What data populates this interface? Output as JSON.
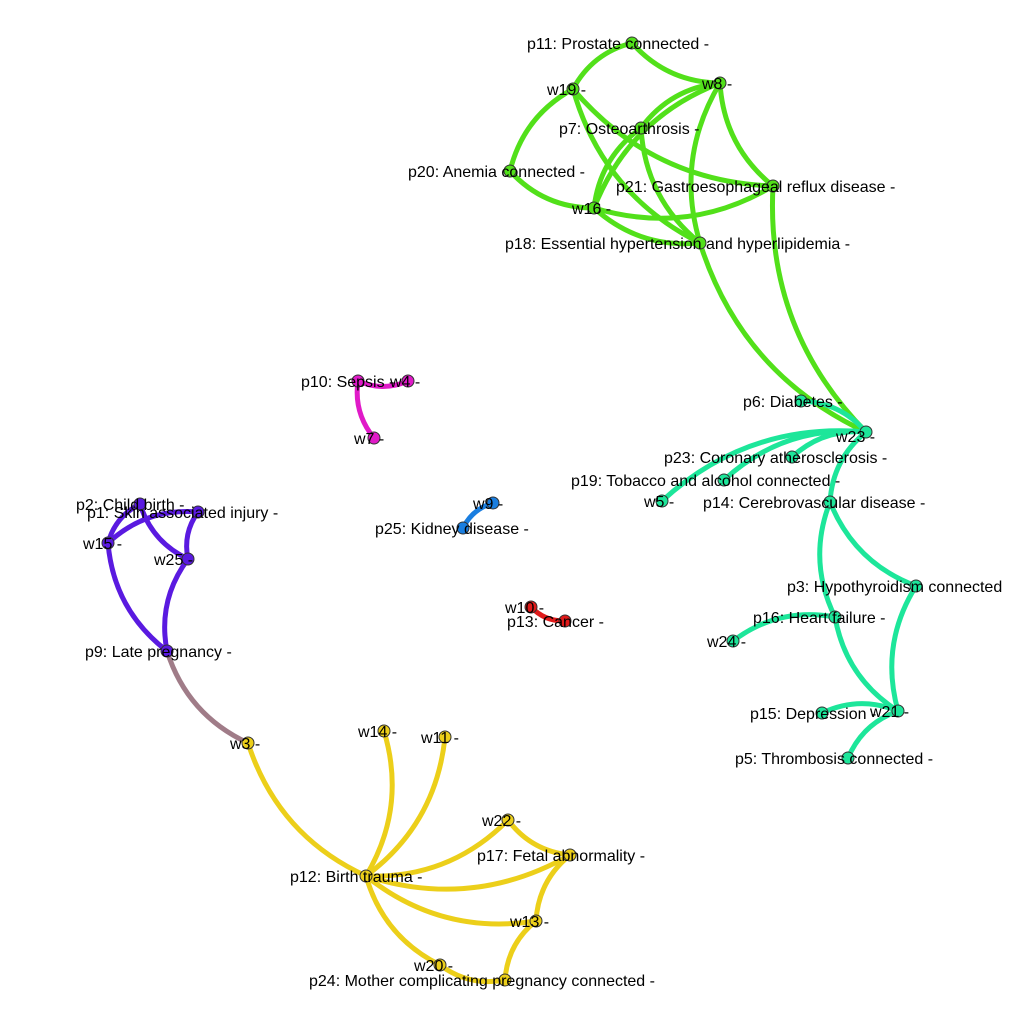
{
  "colors": {
    "green": "#52e01a",
    "teal": "#1de69a",
    "purple": "#5a1ae0",
    "magenta": "#e01ac8",
    "blue": "#1a7ee0",
    "red": "#e01a1a",
    "yellow": "#eccf1a",
    "mauve": "#a07c88"
  },
  "nodes": [
    {
      "id": "p11",
      "label": "p11: Prostate connected -",
      "color": "green"
    },
    {
      "id": "w19",
      "label": "w19 -",
      "color": "green"
    },
    {
      "id": "w8",
      "label": "w8 -",
      "color": "green"
    },
    {
      "id": "p7",
      "label": "p7: Osteoarthrosis -",
      "color": "green"
    },
    {
      "id": "p20",
      "label": "p20: Anemia connected -",
      "color": "green"
    },
    {
      "id": "p21",
      "label": "p21: Gastroesophageal reflux disease -",
      "color": "green"
    },
    {
      "id": "w16",
      "label": "w16 -",
      "color": "green"
    },
    {
      "id": "p18",
      "label": "p18: Essential hypertension and hyperlipidemia -",
      "color": "green"
    },
    {
      "id": "p10",
      "label": "p10: Sepsis -",
      "color": "magenta"
    },
    {
      "id": "w4",
      "label": "w4 -",
      "color": "magenta"
    },
    {
      "id": "w7",
      "label": "w7 -",
      "color": "magenta"
    },
    {
      "id": "p6",
      "label": "p6: Diabetes -",
      "color": "teal"
    },
    {
      "id": "w23",
      "label": "w23 -",
      "color": "teal"
    },
    {
      "id": "p23",
      "label": "p23: Coronary atherosclerosis -",
      "color": "teal"
    },
    {
      "id": "p19",
      "label": "p19: Tobacco and alcohol connected -",
      "color": "teal"
    },
    {
      "id": "w5",
      "label": "w5 -",
      "color": "teal"
    },
    {
      "id": "p14",
      "label": "p14: Cerebrovascular disease -",
      "color": "teal"
    },
    {
      "id": "w9",
      "label": "w9 -",
      "color": "blue"
    },
    {
      "id": "p25",
      "label": "p25: Kidney disease -",
      "color": "blue"
    },
    {
      "id": "p2",
      "label": "p2: Child birth -",
      "color": "purple"
    },
    {
      "id": "p1",
      "label": "p1: Skin associated injury -",
      "color": "purple"
    },
    {
      "id": "w15",
      "label": "w15 -",
      "color": "purple"
    },
    {
      "id": "w25",
      "label": "w25 -",
      "color": "purple"
    },
    {
      "id": "p3",
      "label": "p3: Hypothyroidism connected",
      "color": "teal"
    },
    {
      "id": "w10",
      "label": "w10 -",
      "color": "red"
    },
    {
      "id": "p13",
      "label": "p13: Cancer -",
      "color": "red"
    },
    {
      "id": "p16",
      "label": "p16: Heart failure -",
      "color": "teal"
    },
    {
      "id": "w24",
      "label": "w24 -",
      "color": "teal"
    },
    {
      "id": "p9",
      "label": "p9: Late pregnancy -",
      "color": "purple"
    },
    {
      "id": "p15",
      "label": "p15: Depression -",
      "color": "teal"
    },
    {
      "id": "w21",
      "label": "w21 -",
      "color": "teal"
    },
    {
      "id": "w3",
      "label": "w3 -",
      "color": "yellow"
    },
    {
      "id": "w14",
      "label": "w14 -",
      "color": "yellow"
    },
    {
      "id": "w11",
      "label": "w11 -",
      "color": "yellow"
    },
    {
      "id": "p5",
      "label": "p5: Thrombosis connected -",
      "color": "teal"
    },
    {
      "id": "w22",
      "label": "w22 -",
      "color": "yellow"
    },
    {
      "id": "p17",
      "label": "p17: Fetal abnormality -",
      "color": "yellow"
    },
    {
      "id": "p12",
      "label": "p12: Birth trauma -",
      "color": "yellow"
    },
    {
      "id": "w13",
      "label": "w13 -",
      "color": "yellow"
    },
    {
      "id": "w20",
      "label": "w20 -",
      "color": "yellow"
    },
    {
      "id": "p24",
      "label": "p24: Mother complicating pregnancy connected -",
      "color": "yellow"
    }
  ],
  "edges": [
    {
      "from": "p11",
      "to": "w19",
      "color": "green"
    },
    {
      "from": "p11",
      "to": "w8",
      "color": "green"
    },
    {
      "from": "w19",
      "to": "p20",
      "color": "green"
    },
    {
      "from": "w19",
      "to": "p21",
      "color": "green"
    },
    {
      "from": "w19",
      "to": "p18",
      "color": "green"
    },
    {
      "from": "w8",
      "to": "p7",
      "color": "green"
    },
    {
      "from": "w8",
      "to": "w16",
      "color": "green"
    },
    {
      "from": "w8",
      "to": "p18",
      "color": "green"
    },
    {
      "from": "w8",
      "to": "p21",
      "color": "green"
    },
    {
      "from": "p7",
      "to": "w16",
      "color": "green"
    },
    {
      "from": "p7",
      "to": "p18",
      "color": "green"
    },
    {
      "from": "p20",
      "to": "w16",
      "color": "green"
    },
    {
      "from": "w16",
      "to": "p21",
      "color": "green"
    },
    {
      "from": "w16",
      "to": "p18",
      "color": "green"
    },
    {
      "from": "p21",
      "to": "w23",
      "color": "green"
    },
    {
      "from": "p18",
      "to": "w23",
      "color": "green"
    },
    {
      "from": "p10",
      "to": "w4",
      "color": "magenta"
    },
    {
      "from": "p10",
      "to": "w7",
      "color": "magenta"
    },
    {
      "from": "w23",
      "to": "p6",
      "color": "teal"
    },
    {
      "from": "w23",
      "to": "p23",
      "color": "teal"
    },
    {
      "from": "w23",
      "to": "p19",
      "color": "teal"
    },
    {
      "from": "w23",
      "to": "w5",
      "color": "teal"
    },
    {
      "from": "w23",
      "to": "p14",
      "color": "teal"
    },
    {
      "from": "p14",
      "to": "p3",
      "color": "teal"
    },
    {
      "from": "p14",
      "to": "p16",
      "color": "teal"
    },
    {
      "from": "p16",
      "to": "w24",
      "color": "teal"
    },
    {
      "from": "p16",
      "to": "w21",
      "color": "teal"
    },
    {
      "from": "p3",
      "to": "w21",
      "color": "teal"
    },
    {
      "from": "w21",
      "to": "p15",
      "color": "teal"
    },
    {
      "from": "w21",
      "to": "p5",
      "color": "teal"
    },
    {
      "from": "w9",
      "to": "p25",
      "color": "blue"
    },
    {
      "from": "w10",
      "to": "p13",
      "color": "red"
    },
    {
      "from": "p2",
      "to": "w15",
      "color": "purple"
    },
    {
      "from": "p2",
      "to": "w25",
      "color": "purple"
    },
    {
      "from": "p1",
      "to": "w15",
      "color": "purple"
    },
    {
      "from": "p1",
      "to": "w25",
      "color": "purple"
    },
    {
      "from": "w15",
      "to": "p9",
      "color": "purple"
    },
    {
      "from": "w25",
      "to": "p9",
      "color": "purple"
    },
    {
      "from": "p9",
      "to": "w3",
      "color": "mauve"
    },
    {
      "from": "w3",
      "to": "p12",
      "color": "yellow"
    },
    {
      "from": "p12",
      "to": "w14",
      "color": "yellow"
    },
    {
      "from": "p12",
      "to": "w11",
      "color": "yellow"
    },
    {
      "from": "p12",
      "to": "w22",
      "color": "yellow"
    },
    {
      "from": "p12",
      "to": "p17",
      "color": "yellow"
    },
    {
      "from": "p12",
      "to": "w13",
      "color": "yellow"
    },
    {
      "from": "p12",
      "to": "w20",
      "color": "yellow"
    },
    {
      "from": "w22",
      "to": "p17",
      "color": "yellow"
    },
    {
      "from": "p17",
      "to": "w13",
      "color": "yellow"
    },
    {
      "from": "w13",
      "to": "p24",
      "color": "yellow"
    },
    {
      "from": "w20",
      "to": "p24",
      "color": "yellow"
    }
  ]
}
